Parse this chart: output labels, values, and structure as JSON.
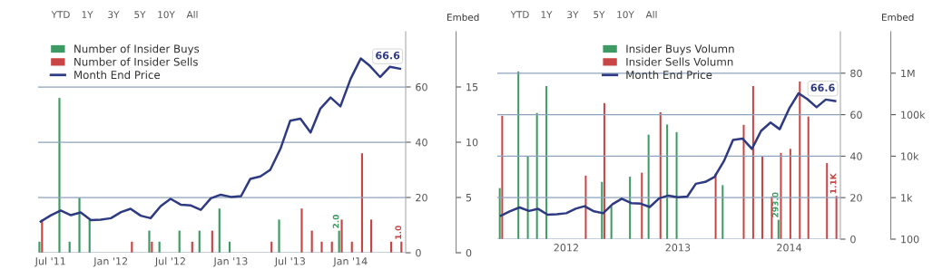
{
  "chart_data": [
    {
      "type": "bar",
      "annotations": [
        "YTD",
        "1Y",
        "3Y",
        "5Y",
        "10Y",
        "All",
        "Embed"
      ],
      "x": [
        "2011-06",
        "2011-07",
        "2011-08",
        "2011-09",
        "2011-10",
        "2011-11",
        "2011-12",
        "2012-01",
        "2012-02",
        "2012-03",
        "2012-04",
        "2012-05",
        "2012-06",
        "2012-07",
        "2012-08",
        "2012-09",
        "2012-10",
        "2012-11",
        "2012-12",
        "2013-01",
        "2013-02",
        "2013-03",
        "2013-04",
        "2013-05",
        "2013-06",
        "2013-07",
        "2013-08",
        "2013-09",
        "2013-10",
        "2013-11",
        "2013-12",
        "2014-01",
        "2014-02",
        "2014-03",
        "2014-04",
        "2014-05",
        "2014-06"
      ],
      "series": [
        {
          "name": "Number of Insider Buys",
          "axis": "y2",
          "color": "#3d9a62",
          "values": [
            1,
            null,
            14,
            1,
            5,
            3,
            null,
            null,
            null,
            null,
            null,
            2,
            1,
            null,
            2,
            null,
            2,
            null,
            4,
            1,
            null,
            null,
            null,
            null,
            3,
            null,
            null,
            null,
            null,
            null,
            2,
            null,
            null,
            null,
            null,
            null,
            null
          ],
          "value_labels": [
            null,
            null,
            null,
            null,
            null,
            null,
            null,
            null,
            null,
            null,
            null,
            null,
            null,
            null,
            null,
            null,
            null,
            null,
            null,
            null,
            null,
            null,
            null,
            null,
            null,
            null,
            null,
            null,
            null,
            null,
            "2.0",
            null,
            null,
            null,
            null,
            null,
            null
          ]
        },
        {
          "name": "Number of Insider Sells",
          "axis": "y2",
          "color": "#c94545",
          "values": [
            3,
            null,
            null,
            null,
            null,
            null,
            null,
            null,
            null,
            1,
            null,
            1,
            null,
            null,
            null,
            1,
            null,
            2,
            null,
            null,
            null,
            null,
            null,
            1,
            null,
            null,
            4,
            2,
            1,
            1,
            3,
            1,
            9,
            3,
            null,
            1,
            1
          ],
          "value_labels": [
            null,
            null,
            null,
            null,
            null,
            null,
            null,
            null,
            null,
            null,
            null,
            null,
            null,
            null,
            null,
            null,
            null,
            null,
            null,
            null,
            null,
            null,
            null,
            null,
            null,
            null,
            null,
            null,
            null,
            null,
            null,
            null,
            null,
            null,
            null,
            null,
            "1.0"
          ]
        },
        {
          "name": "Month End Price",
          "type": "line",
          "axis": "y",
          "color": "#2e3a82",
          "values": [
            11.3,
            13.5,
            15.3,
            13.6,
            14.6,
            11.8,
            12.0,
            12.5,
            14.7,
            15.9,
            13.4,
            12.5,
            16.9,
            19.5,
            17.4,
            17.1,
            15.5,
            19.7,
            21.0,
            20.2,
            20.5,
            26.7,
            27.6,
            30.0,
            37.6,
            47.8,
            48.5,
            43.5,
            52.2,
            56.2,
            53.0,
            62.9,
            70.3,
            67.6,
            63.6,
            67.3,
            66.6
          ],
          "value_labels": [
            null,
            null,
            null,
            null,
            null,
            null,
            null,
            null,
            null,
            null,
            null,
            null,
            null,
            null,
            null,
            null,
            null,
            null,
            null,
            null,
            null,
            null,
            null,
            null,
            null,
            null,
            null,
            null,
            null,
            null,
            null,
            null,
            null,
            null,
            null,
            null,
            "66.6"
          ]
        }
      ],
      "xlim": [
        "2011-05-24",
        "2014-06-18"
      ],
      "xticks": [
        {
          "value": "2011-07-01",
          "label": "Jul '11"
        },
        {
          "value": "2012-01-01",
          "label": "Jan '12"
        },
        {
          "value": "2012-07-01",
          "label": "Jul '12"
        },
        {
          "value": "2013-01-01",
          "label": "Jan '13"
        },
        {
          "value": "2013-07-01",
          "label": "Jul '13"
        },
        {
          "value": "2014-01-01",
          "label": "Jan '14"
        }
      ],
      "ylim": [
        0,
        80
      ],
      "yticks": [
        0,
        20,
        40,
        60
      ],
      "y2lim": [
        0,
        20
      ],
      "y2ticks": [
        0,
        5,
        10,
        15
      ],
      "grid": "y",
      "legend": "top left",
      "marker": "none",
      "line_style": "solid"
    },
    {
      "type": "bar",
      "annotations": [
        "YTD",
        "1Y",
        "3Y",
        "5Y",
        "10Y",
        "All",
        "Embed"
      ],
      "x": [
        "2011-06",
        "2011-07",
        "2011-08",
        "2011-09",
        "2011-10",
        "2011-11",
        "2011-12",
        "2012-01",
        "2012-02",
        "2012-03",
        "2012-04",
        "2012-05",
        "2012-06",
        "2012-07",
        "2012-08",
        "2012-09",
        "2012-10",
        "2012-11",
        "2012-12",
        "2013-01",
        "2013-02",
        "2013-03",
        "2013-04",
        "2013-05",
        "2013-06",
        "2013-07",
        "2013-08",
        "2013-09",
        "2013-10",
        "2013-11",
        "2013-12",
        "2014-01",
        "2014-02",
        "2014-03",
        "2014-04",
        "2014-05",
        "2014-06"
      ],
      "series": [
        {
          "name": "Insider Buys Volumn",
          "axis": "y2",
          "color": "#3d9a62",
          "values": [
            1700,
            null,
            1100000,
            9700,
            110000,
            490000,
            null,
            null,
            null,
            null,
            null,
            2400,
            610,
            null,
            3200,
            null,
            33000,
            null,
            58000,
            38000,
            null,
            null,
            null,
            null,
            2000,
            null,
            null,
            null,
            null,
            null,
            293,
            null,
            null,
            null,
            null,
            null,
            null
          ],
          "value_labels": [
            null,
            null,
            null,
            null,
            null,
            null,
            null,
            null,
            null,
            null,
            null,
            null,
            null,
            null,
            null,
            null,
            null,
            null,
            null,
            null,
            null,
            null,
            null,
            null,
            null,
            null,
            null,
            null,
            null,
            null,
            "293.0",
            null,
            null,
            null,
            null,
            null,
            null
          ]
        },
        {
          "name": "Insider Sells Volumn",
          "axis": "y2",
          "color": "#c94545",
          "values": [
            94000,
            null,
            null,
            null,
            null,
            null,
            null,
            null,
            null,
            3400,
            null,
            190000,
            null,
            null,
            null,
            4000,
            null,
            115000,
            null,
            null,
            null,
            null,
            null,
            3800,
            null,
            null,
            57000,
            490000,
            9700,
            1060,
            12000,
            15000,
            630000,
            90000,
            null,
            6800,
            1100
          ],
          "value_labels": [
            null,
            null,
            null,
            null,
            null,
            null,
            null,
            null,
            null,
            null,
            null,
            null,
            null,
            null,
            null,
            null,
            null,
            null,
            null,
            null,
            null,
            null,
            null,
            null,
            null,
            null,
            null,
            null,
            null,
            null,
            null,
            null,
            null,
            null,
            null,
            null,
            "1.1K"
          ]
        },
        {
          "name": "Month End Price",
          "type": "line",
          "axis": "y",
          "color": "#2e3a82",
          "values": [
            11.3,
            13.5,
            15.3,
            13.6,
            14.6,
            11.8,
            12.0,
            12.5,
            14.7,
            15.9,
            13.4,
            12.5,
            16.9,
            19.5,
            17.4,
            17.1,
            15.5,
            19.7,
            21.0,
            20.2,
            20.5,
            26.7,
            27.6,
            30.0,
            37.6,
            47.8,
            48.5,
            43.5,
            52.2,
            56.2,
            53.0,
            62.9,
            70.3,
            67.6,
            63.6,
            67.3,
            66.6
          ],
          "value_labels": [
            null,
            null,
            null,
            null,
            null,
            null,
            null,
            null,
            null,
            null,
            null,
            null,
            null,
            null,
            null,
            null,
            null,
            null,
            null,
            null,
            null,
            null,
            null,
            null,
            null,
            null,
            null,
            null,
            null,
            null,
            null,
            null,
            null,
            null,
            null,
            null,
            "66.6"
          ]
        }
      ],
      "xlim": [
        "2011-05-20",
        "2014-06-18"
      ],
      "xticks": [
        {
          "value": "2012-01-01",
          "label": "2012"
        },
        {
          "value": "2013-01-01",
          "label": "2013"
        },
        {
          "value": "2014-01-01",
          "label": "2014"
        }
      ],
      "ylim": [
        0,
        100
      ],
      "yticks": [
        0,
        20,
        40,
        60,
        80
      ],
      "y2lim": [
        100,
        10000000
      ],
      "log": "y2",
      "y2ticks": [
        {
          "value": 100,
          "label": "100"
        },
        {
          "value": 1000,
          "label": "1k"
        },
        {
          "value": 10000,
          "label": "10k"
        },
        {
          "value": 100000,
          "label": "100k"
        },
        {
          "value": 1000000,
          "label": "1M"
        }
      ],
      "grid": "y",
      "legend": "top center",
      "marker": "none",
      "line_style": "solid"
    }
  ]
}
